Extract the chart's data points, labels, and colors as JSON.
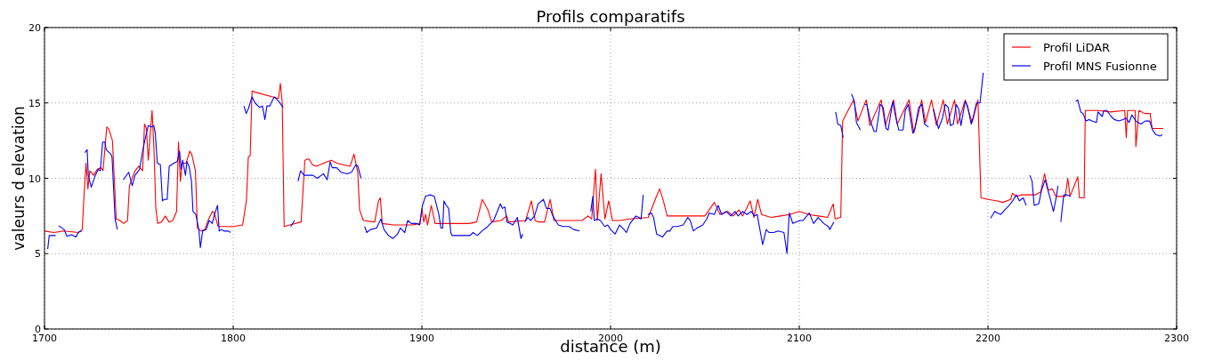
{
  "chart_data": {
    "type": "line",
    "title": "Profils comparatifs",
    "xlabel": "distance (m)",
    "ylabel": "valeurs d elevation",
    "xlim": [
      1700,
      2300
    ],
    "xticks": [
      1700,
      1800,
      1900,
      2000,
      2100,
      2200,
      2300
    ],
    "ylim": [
      0,
      20
    ],
    "yticks": [
      0,
      5,
      10,
      15,
      20
    ],
    "grid": true,
    "legend": "top right",
    "marker": "none",
    "line_style": "solid",
    "series": [
      {
        "name": "Profil LiDAR",
        "color": "#ff0000",
        "x": [
          1700,
          1705,
          1710,
          1718,
          1720,
          1721,
          1722,
          1723,
          1724,
          1726,
          1728,
          1730,
          1731,
          1733,
          1734,
          1736,
          1738,
          1740,
          1742,
          1744,
          1745,
          1748,
          1750,
          1752,
          1753,
          1754,
          1755,
          1757,
          1758,
          1759,
          1760,
          1762,
          1764,
          1766,
          1768,
          1770,
          1771,
          1772,
          1773,
          1775,
          1777,
          1778,
          1780,
          1781,
          1783,
          1785,
          1787,
          1789,
          1790,
          1792,
          1795,
          1800,
          1805,
          1807,
          1808,
          1809,
          1810,
          1812,
          1824,
          1825,
          1826,
          1827,
          1830,
          1836,
          1838,
          1840,
          1842,
          1844,
          1850,
          1852,
          1855,
          1858,
          1862,
          1864,
          1866,
          1867,
          1869,
          1875,
          1877,
          1878,
          1879,
          1885,
          1895,
          1899,
          1900,
          1901,
          1902,
          1903,
          1905,
          1907,
          1915,
          1925,
          1929,
          1932,
          1935,
          1937,
          1942,
          1945,
          1946,
          1955,
          1958,
          1960,
          1962,
          1965,
          1968,
          1970,
          1980,
          1985,
          1988,
          1990,
          1992,
          1993,
          1995,
          1997,
          1999,
          2001,
          2005,
          2010,
          2020,
          2024,
          2026,
          2028,
          2030,
          2040,
          2050,
          2055,
          2058,
          2062,
          2065,
          2068,
          2070,
          2074,
          2076,
          2078,
          2080,
          2085,
          2090,
          2095,
          2100,
          2105,
          2110,
          2115,
          2118,
          2119,
          2122,
          2123,
          2128.8,
          2131.1,
          2135.5,
          2137.4,
          2143.4,
          2145.6,
          2150,
          2151.9,
          2158.2,
          2160.7,
          2164.9,
          2166.9,
          2170.1,
          2172.7,
          2176.3,
          2178.5,
          2182.3,
          2183.9,
          2188,
          2191.6,
          2194.7,
          2196.3,
          2200,
          2205,
          2208,
          2212,
          2213,
          2215,
          2218,
          2225,
          2228,
          2230,
          2232,
          2234,
          2236,
          2241,
          2242.3,
          2243.5,
          2247.6,
          2248.5,
          2251,
          2251.6,
          2258,
          2265,
          2272.5,
          2273.3,
          2274,
          2278,
          2278.4,
          2280,
          2283,
          2286,
          2287,
          2292.9
        ],
        "values": [
          6.5,
          6.4,
          6.5,
          6.4,
          6.6,
          9,
          11,
          9.3,
          10.5,
          10.2,
          10.6,
          10.7,
          10.5,
          13.4,
          13.3,
          12.5,
          7.3,
          7.2,
          7,
          7.2,
          9.5,
          10.5,
          10.8,
          10.5,
          13.6,
          13.3,
          11.2,
          14.5,
          12,
          8,
          7,
          7.1,
          7.5,
          7.1,
          7.2,
          7.8,
          12.4,
          9.8,
          11,
          11,
          11.8,
          11.6,
          10.5,
          6.7,
          6.5,
          6.6,
          7.3,
          7.8,
          7.7,
          6.8,
          6.8,
          6.8,
          6.9,
          8.5,
          11.4,
          11.5,
          15.8,
          15.7,
          15.3,
          16.3,
          15,
          6.8,
          6.9,
          7.1,
          11.2,
          11.3,
          10.9,
          10.8,
          11.1,
          11.2,
          11,
          10.9,
          10.8,
          11.6,
          10.4,
          7.9,
          7.2,
          7.1,
          8.5,
          8.7,
          7,
          6.9,
          6.9,
          7,
          8,
          7.1,
          7.6,
          6.9,
          8.2,
          7,
          7,
          7,
          7.1,
          8.6,
          7.9,
          7.1,
          7.2,
          7.5,
          7.1,
          7.2,
          8.5,
          7.2,
          7.1,
          7.1,
          8.6,
          7.2,
          7.2,
          7.2,
          7.5,
          7.3,
          10.6,
          7.2,
          10.3,
          7.3,
          8.5,
          7.2,
          7.2,
          7.3,
          7.4,
          8.7,
          9.3,
          8.5,
          7.5,
          7.5,
          7.5,
          8.4,
          7.6,
          7.8,
          7.5,
          7.9,
          7.5,
          8.5,
          7.4,
          8.6,
          7.6,
          7.4,
          7.5,
          7.6,
          7.8,
          7.6,
          7.5,
          7.4,
          8.3,
          7.3,
          7.4,
          13.8,
          15.2,
          13.8,
          15.2,
          13.5,
          15.2,
          13.5,
          15.2,
          13.6,
          15.2,
          13,
          15.2,
          13.7,
          15.2,
          13.5,
          15.2,
          13.6,
          15.2,
          13.6,
          15.2,
          13.7,
          15.2,
          8.7,
          8.6,
          8.5,
          8.4,
          8.6,
          9,
          8.8,
          8.9,
          8.9,
          9.1,
          10.3,
          9.2,
          9.3,
          8.8,
          8.8,
          10,
          8.8,
          10.1,
          8.7,
          8.7,
          14.5,
          14.5,
          14.4,
          14.5,
          12.7,
          14.5,
          14.5,
          12.1,
          14.5,
          14.3,
          14.3,
          13.3,
          13.3
        ]
      },
      {
        "name": "Profil MNS Fusionne",
        "color": "#0000ff",
        "x": [
          1701.7,
          1702.5,
          1705.9,
          1706.7,
          1707.5,
          1710.4,
          1711.9,
          1714.3,
          1716.6,
          1718.2,
          1719.8,
          1720.6,
          1721.4,
          1722.6,
          1723.2,
          1724.8,
          1726.6,
          1728.5,
          1729.6,
          1730.8,
          1732,
          1732.7,
          1735.2,
          1735.8,
          1737.4,
          1738.6,
          1740.2,
          1741.8,
          1744.6,
          1746.5,
          1748,
          1750.4,
          1752,
          1753.5,
          1755,
          1756.7,
          1757.9,
          1758.7,
          1759.8,
          1761.4,
          1762.5,
          1763.4,
          1765,
          1766.1,
          1768.5,
          1770.3,
          1771.6,
          1772.4,
          1773.2,
          1774.7,
          1775.5,
          1776.6,
          1777.9,
          1778.7,
          1780.2,
          1781.8,
          1782.6,
          1783.8,
          1785.7,
          1787.3,
          1788.9,
          1790.1,
          1791.7,
          1792.6,
          1793.6,
          1795.1,
          1797.5,
          1798.6,
          1802,
          1805.7,
          1806.9,
          1808,
          1810,
          1811.6,
          1814,
          1815.5,
          1816.8,
          1817.9,
          1819.5,
          1820.5,
          1821.8,
          1824.2,
          1826.5,
          1828.5,
          1830.5,
          1832.5,
          1833.5,
          1834.4,
          1835.7,
          1837.6,
          1842.2,
          1844.6,
          1847.8,
          1849.8,
          1851.4,
          1852.5,
          1854.8,
          1857.1,
          1860.4,
          1862.7,
          1865,
          1866.1,
          1867.7,
          1868.7,
          1869.7,
          1870.8,
          1872.8,
          1876,
          1878.3,
          1879.9,
          1882.3,
          1884.6,
          1887.1,
          1888.6,
          1890.9,
          1892.5,
          1894.4,
          1897.2,
          1898.8,
          1900.3,
          1901.9,
          1904.2,
          1906.6,
          1909,
          1910.1,
          1911,
          1911.7,
          1912.9,
          1914.2,
          1915.3,
          1916,
          1925.5,
          1927,
          1929.4,
          1931.8,
          1934.9,
          1938,
          1941.6,
          1942.7,
          1944,
          1945.1,
          1946.7,
          1948.2,
          1950.6,
          1952.5,
          1953.4,
          1954,
          1954.5,
          1956.1,
          1957.7,
          1959.7,
          1961.6,
          1964.4,
          1966,
          1967.9,
          1969.4,
          1972.3,
          1974.9,
          1978.1,
          1980.4,
          1983.6,
          1986,
          1989.5,
          1990.6,
          1991.4,
          1993,
          1994.6,
          1996.9,
          1998.5,
          2000,
          2002.4,
          2004.8,
          2007.1,
          2008.4,
          2010.3,
          2013.4,
          2015,
          2016.2,
          2017.3,
          2018.5,
          2019.7,
          2021.6,
          2022.8,
          2024.4,
          2027.5,
          2029.9,
          2031.4,
          2033,
          2035.4,
          2038.5,
          2040.9,
          2042.2,
          2043.9,
          2045.8,
          2048.9,
          2051,
          2052.3,
          2055,
          2057,
          2058.9,
          2061.3,
          2063.7,
          2066,
          2067.6,
          2070,
          2072.3,
          2074.6,
          2076.2,
          2077.7,
          2080.6,
          2082.5,
          2084.1,
          2086.4,
          2088.7,
          2091.9,
          2093.5,
          2094.7,
          2096.6,
          2098.2,
          2100.5,
          2102.1,
          2105.3,
          2107.6,
          2110,
          2113,
          2115.4,
          2116.2,
          2118.3,
          2118.8,
          2119.3,
          2120.4,
          2122,
          2123.3,
          2125.5,
          2127.7,
          2129.2,
          2130.3,
          2132.4,
          2133.5,
          2134.6,
          2135.8,
          2137.7,
          2139.7,
          2140.8,
          2142.9,
          2144.5,
          2146,
          2147.1,
          2149.6,
          2151.2,
          2152.8,
          2155,
          2156.2,
          2157.8,
          2160.2,
          2161.3,
          2163.3,
          2164.9,
          2166.4,
          2168.5,
          2169.8,
          2171.1,
          2172.7,
          2173.8,
          2175.9,
          2177.4,
          2179,
          2180.1,
          2181.7,
          2183.2,
          2184.5,
          2185.7,
          2187.9,
          2189.2,
          2191.1,
          2192.3,
          2193.9,
          2195.8,
          2197.5,
          2199.5,
          2201.4,
          2203.6,
          2204.9,
          2206.8,
          2208.9,
          2211.2,
          2213.1,
          2215.1,
          2216.7,
          2218.7,
          2220.3,
          2221.2,
          2222.2,
          2223.4,
          2224.5,
          2226.9,
          2228.4,
          2230.3,
          2231.6,
          2233.1,
          2234.7,
          2236.3,
          2237.1,
          2237.8,
          2238.6,
          2240.2,
          2241.8,
          2243.8,
          2245.2,
          2246.5,
          2247.6,
          2249.2,
          2250.4,
          2252,
          2253.6,
          2255.1,
          2257.5,
          2258.3,
          2260.6,
          2261.4,
          2263,
          2265.3,
          2266.9,
          2269.3,
          2271.6,
          2273.2,
          2274.8,
          2276.3,
          2278.4,
          2279.5,
          2281,
          2283.4,
          2285.7,
          2287.3,
          2288.9,
          2291.2,
          2292.5
        ],
        "values": [
          5.3,
          6.2,
          6.2,
          null,
          6.85,
          6.6,
          6.15,
          6.25,
          6.1,
          6.45,
          6.5,
          null,
          11.7,
          11.9,
          10.2,
          9.4,
          10.1,
          10.6,
          10.5,
          12.4,
          12.4,
          11.9,
          11.6,
          11.4,
          7.3,
          6.6,
          null,
          9.9,
          10.4,
          9.5,
          10.2,
          10.6,
          11.8,
          12.7,
          13.5,
          13.4,
          13.5,
          13,
          11,
          10.9,
          8.5,
          8.6,
          8.6,
          10.8,
          11,
          11.1,
          11.8,
          10.6,
          11.2,
          10.2,
          11.1,
          10.8,
          9.8,
          7.8,
          7.6,
          6.6,
          5.4,
          6.5,
          6.6,
          7.2,
          7,
          7.6,
          8.2,
          6.5,
          6.6,
          6.5,
          6.5,
          6.4,
          null,
          14.8,
          14.3,
          14.6,
          15.4,
          15,
          14.7,
          14.8,
          13.9,
          14.8,
          14.8,
          15.1,
          15.4,
          15.1,
          14.7,
          null,
          6.8,
          7.2,
          null,
          9.8,
          10.5,
          10.2,
          10.2,
          10,
          10.3,
          9.9,
          11.1,
          10.7,
          10.7,
          10.4,
          10.3,
          10.4,
          10.9,
          10.8,
          10,
          null,
          6.8,
          6.4,
          6.6,
          6.7,
          7.3,
          6.6,
          6.2,
          6,
          6.3,
          6.7,
          6.4,
          7.2,
          7,
          7,
          6.9,
          8.2,
          8.8,
          8.9,
          8.8,
          7.6,
          6.7,
          6.7,
          8.5,
          8.2,
          8,
          6.4,
          6.2,
          6.2,
          6.4,
          6.2,
          6.5,
          6.8,
          7.2,
          8.3,
          8,
          8.1,
          7.1,
          7,
          6.9,
          7.4,
          6,
          6.3,
          null,
          7.1,
          7.4,
          7.2,
          7.5,
          8.3,
          8.6,
          8,
          8,
          7.5,
          6.9,
          6.8,
          6.8,
          6.6,
          6.5,
          null,
          7.8,
          8.8,
          7.2,
          7.3,
          7.2,
          6.8,
          6.9,
          6.6,
          6.3,
          6.9,
          6.6,
          6.4,
          7,
          7.5,
          7.4,
          7.3,
          8.9,
          null,
          7.6,
          7.7,
          7.4,
          6.3,
          6.1,
          6.5,
          6.5,
          6.8,
          6.8,
          6.9,
          7.4,
          7.2,
          6.5,
          6.7,
          6.9,
          7.3,
          7.7,
          7.6,
          8.2,
          7.6,
          7.8,
          7.5,
          7.8,
          7.5,
          7.8,
          7.6,
          7.8,
          7.5,
          7.6,
          5.6,
          6.6,
          6.4,
          6.4,
          6.5,
          6.4,
          5,
          7.7,
          7,
          7.1,
          7.2,
          7.2,
          7.7,
          7,
          7.4,
          7,
          6.8,
          6.6,
          7.1,
          null,
          14.4,
          13.6,
          13.5,
          12.7,
          null,
          15.6,
          15.1,
          13.7,
          13.2,
          null,
          14.9,
          14.9,
          13.8,
          13.1,
          13.1,
          14.9,
          14.7,
          13.3,
          13.2,
          15.1,
          14,
          13.2,
          13.2,
          14.5,
          14.9,
          13,
          13.3,
          14.7,
          14.9,
          13.6,
          13.4,
          null,
          14.6,
          13.8,
          13.3,
          14,
          14.9,
          14.7,
          13.5,
          13.6,
          14.9,
          14.6,
          13.5,
          15.1,
          14.8,
          13.6,
          14.1,
          15,
          15,
          17,
          null,
          7.35,
          7.8,
          7.7,
          7.6,
          7.9,
          8.2,
          8.5,
          8.9,
          8.5,
          8.7,
          8.2,
          null,
          10.2,
          9.8,
          8.2,
          8.3,
          9.2,
          9.9,
          9.3,
          8.6,
          7.8,
          8.8,
          9.5,
          null,
          7.1,
          8.9,
          8.9,
          8.8,
          null,
          15.1,
          15.2,
          14.4,
          14.3,
          13.8,
          13.9,
          13.8,
          13.7,
          14.4,
          14.1,
          14.5,
          14.5,
          14.1,
          13.9,
          13.8,
          13.9,
          14,
          13.7,
          14.2,
          13.8,
          13.7,
          13.6,
          13.8,
          13.8,
          13.2,
          12.9,
          12.8,
          12.9
        ]
      }
    ]
  }
}
